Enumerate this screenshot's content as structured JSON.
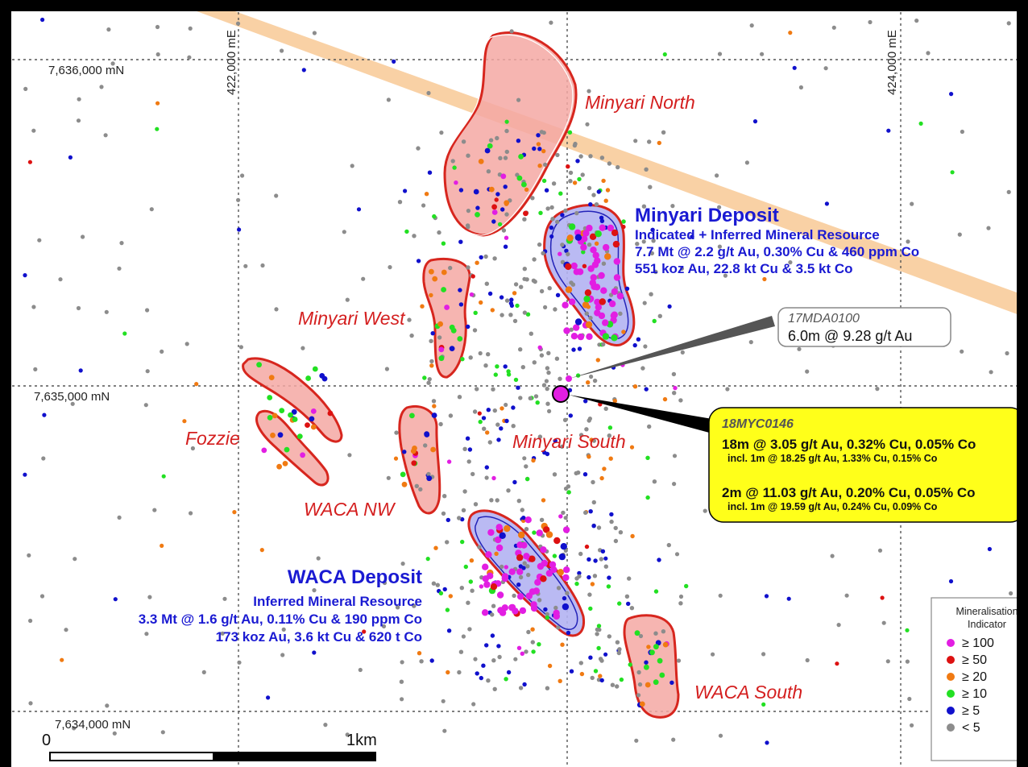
{
  "grid": {
    "easting_labels": [
      "422,000 mE",
      "424,000 mE"
    ],
    "northing_labels": [
      "7,636,000 mN",
      "7,635,000 mN",
      "7,634,000 mN"
    ]
  },
  "deposits": [
    {
      "name": "Minyari Deposit",
      "lines": [
        "Indicated + Inferred Mineral Resource",
        "7.7 Mt @ 2.2 g/t Au, 0.30% Cu & 460 ppm Co",
        "551 koz Au, 22.8 kt Cu & 3.5 kt Co"
      ]
    },
    {
      "name": "WACA Deposit",
      "lines": [
        "Inferred Mineral Resource",
        "3.3 Mt @ 1.6 g/t Au, 0.11% Cu & 190 ppm Co",
        "173 koz Au, 3.6 kt Cu & 620 t Co"
      ]
    }
  ],
  "prospects": [
    "Minyari North",
    "Minyari West",
    "Fozzie",
    "WACA NW",
    "Minyari South",
    "WACA South"
  ],
  "callouts": {
    "mda": {
      "id": "17MDA0100",
      "result": "6.0m @ 9.28 g/t Au"
    },
    "myc": {
      "id": "18MYC0146",
      "result1": "18m @ 3.05 g/t Au, 0.32% Cu, 0.05% Co",
      "incl1": "incl. 1m @ 18.25 g/t Au, 1.33% Cu, 0.15% Co",
      "result2": "2m @ 11.03 g/t Au, 0.20% Cu, 0.05% Co",
      "incl2": "incl. 1m @ 19.59 g/t Au, 0.24% Cu, 0.09% Co"
    }
  },
  "scale_bar": {
    "start_label": "0",
    "end_label": "1km"
  },
  "legend": {
    "title_line1": "Mineralisation",
    "title_line2": "Indicator",
    "items": [
      {
        "label": "≥ 100",
        "color": "#e21ee2"
      },
      {
        "label": "≥ 50",
        "color": "#dd1111"
      },
      {
        "label": "≥ 20",
        "color": "#f07a12"
      },
      {
        "label": "≥ 10",
        "color": "#22e022"
      },
      {
        "label": "≥ 5",
        "color": "#1010cc"
      },
      {
        "label": "< 5",
        "color": "#8c8c8c"
      }
    ]
  },
  "colors": {
    "grid_line": "#555555",
    "deposit_text": "#1a1ad2",
    "prospect_text": "#d41f1f",
    "pit_fill_blue": "#b3b3f2",
    "pit_fill_red": "#f5a8a3",
    "outline_red": "#d7261e",
    "dyke_band": "#f8c995",
    "callout_yellow": "#ffff1a"
  }
}
